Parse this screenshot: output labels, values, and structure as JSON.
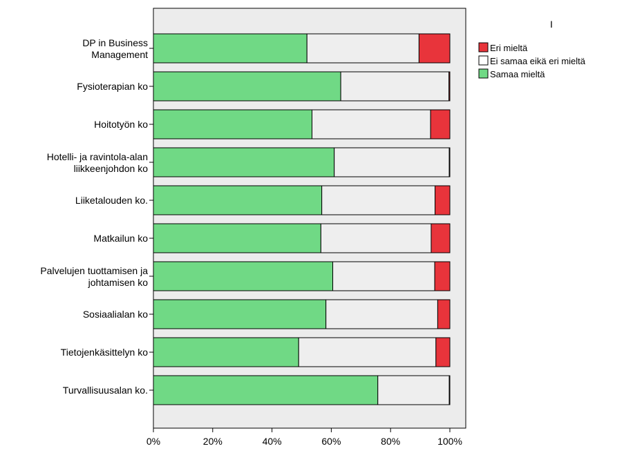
{
  "chart_data": {
    "type": "bar",
    "orientation": "horizontal",
    "stacked": true,
    "percent_stacked": true,
    "marker_text": "I",
    "categories": [
      [
        "DP in Business",
        "Management"
      ],
      [
        "Fysioterapian ko"
      ],
      [
        "Hoitotyön ko"
      ],
      [
        "Hotelli- ja ravintola-alan",
        "liikkeenjohdon ko"
      ],
      [
        "Liiketalouden ko."
      ],
      [
        "Matkailun ko"
      ],
      [
        "Palvelujen tuottamisen ja",
        "johtamisen ko"
      ],
      [
        "Sosiaalialan ko"
      ],
      [
        "Tietojenkäsittelyn ko"
      ],
      [
        "Turvallisuusalan ko."
      ]
    ],
    "series": [
      {
        "name": "Samaa mieltä",
        "color": "#70d985",
        "values": [
          51.8,
          63.2,
          53.5,
          61.0,
          56.8,
          56.5,
          60.5,
          58.2,
          49.0,
          75.7
        ]
      },
      {
        "name": "Ei samaa eikä eri mieltä",
        "color": "#eeeeee",
        "values": [
          37.8,
          36.5,
          40.0,
          38.8,
          38.2,
          37.2,
          34.4,
          37.7,
          46.3,
          24.1
        ]
      },
      {
        "name": "Eri mieltä",
        "color": "#e8343b",
        "values": [
          10.4,
          0.3,
          6.5,
          0.2,
          5.0,
          6.3,
          5.1,
          4.1,
          4.7,
          0.2
        ]
      }
    ],
    "legend": [
      "Eri mieltä",
      "Ei samaa eikä eri mieltä",
      "Samaa mieltä"
    ],
    "legend_position": "right",
    "xlim": [
      0,
      100
    ],
    "xticks": [
      "0%",
      "20%",
      "40%",
      "60%",
      "80%",
      "100%"
    ],
    "grid": false,
    "xlabel": "",
    "ylabel": "",
    "title": ""
  },
  "colors": {
    "plot_background": "#ececec",
    "axis": "#000000"
  }
}
